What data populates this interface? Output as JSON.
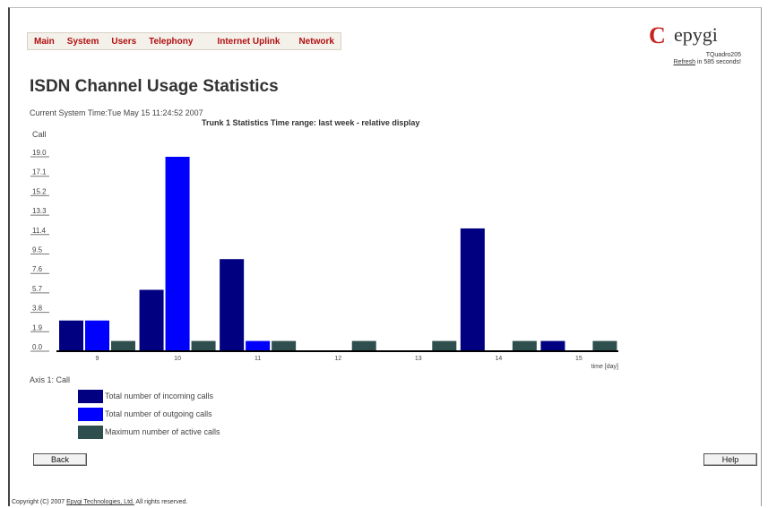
{
  "nav": {
    "items": [
      {
        "label": "Main"
      },
      {
        "label": "System"
      },
      {
        "label": "Users"
      },
      {
        "label": "Telephony"
      },
      {
        "label": "Internet Uplink"
      },
      {
        "label": "Network"
      }
    ]
  },
  "brand": {
    "logo_text": "epygi",
    "logo_mark": "C",
    "device": "TQuadro205",
    "refresh_link": "Refresh",
    "refresh_rest": " in 585 seconds!"
  },
  "page": {
    "title": "ISDN Channel Usage Statistics",
    "system_time": "Current System Time:Tue May 15 11:24:52 2007",
    "chart_title": "Trunk 1 Statistics Time range: last week - relative display",
    "axis_note": "Axis 1: Call"
  },
  "buttons": {
    "back": "Back",
    "help": "Help"
  },
  "footer": {
    "prefix": "Copyright (C) 2007 ",
    "link": "Epygi Technologies, Ltd.",
    "suffix": " All rights reserved."
  },
  "colors": {
    "incoming": "#000080",
    "outgoing": "#0000ff",
    "active": "#2f4f4f",
    "nav_text": "#b01010"
  },
  "chart_data": {
    "type": "bar",
    "ylabel": "Call",
    "xlabel": "time [day]",
    "ylim": [
      0,
      19.0
    ],
    "yticks": [
      "0.0",
      "1.9",
      "3.8",
      "5.7",
      "7.6",
      "9.5",
      "11.4",
      "13.3",
      "15.2",
      "17.1",
      "19.0"
    ],
    "categories": [
      "9",
      "10",
      "11",
      "12",
      "13",
      "14",
      "15"
    ],
    "series": [
      {
        "name": "Total number of incoming calls",
        "color": "#000080",
        "values": [
          3,
          6,
          9,
          0,
          0,
          12,
          1
        ]
      },
      {
        "name": "Total number of outgoing calls",
        "color": "#0000ff",
        "values": [
          3,
          19,
          1,
          0,
          0,
          0,
          0
        ]
      },
      {
        "name": "Maximum number of active calls",
        "color": "#2f4f4f",
        "values": [
          1,
          1,
          1,
          1,
          1,
          1,
          1
        ]
      }
    ],
    "grid": false,
    "legend": "bottom-left"
  }
}
